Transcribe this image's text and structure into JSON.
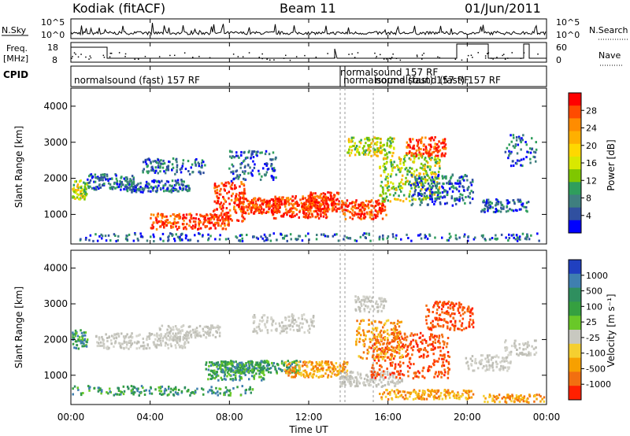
{
  "header": {
    "station": "Kodiak (fitACF)",
    "beam": "Beam 11",
    "date": "01/Jun/2011"
  },
  "panels": {
    "nsky": {
      "label": "N.Sky",
      "right_label": "N.Search",
      "ticks": [
        "10^5",
        "10^0"
      ],
      "right_ticks": [
        "10^5",
        "10^0"
      ]
    },
    "freq": {
      "label_line1": "Freq.",
      "label_line2": "[MHz]",
      "right_label": "Nave",
      "ticks": [
        "18",
        "8"
      ],
      "right_ticks": [
        "60",
        "0"
      ]
    },
    "cpid": {
      "label": "CPID",
      "entries": [
        "normalsound (fast) 157 RF",
        "normalsound 157 RF",
        "normalsound (fast) 157 RF",
        "normalsound (fast) 157 RF"
      ]
    }
  },
  "chart_data": [
    {
      "type": "heatmap",
      "name": "power",
      "ylabel": "Slant Range [km]",
      "ylim": [
        180,
        4500
      ],
      "yticks": [
        "1000",
        "2000",
        "3000",
        "4000"
      ],
      "colorbar": {
        "label": "Power [dB]",
        "ticks": [
          "28",
          "24",
          "20",
          "16",
          "12",
          "8",
          "4"
        ],
        "colors": [
          "#ff0000",
          "#ff4b00",
          "#ff8c00",
          "#ffb000",
          "#ffd800",
          "#d9e800",
          "#7fc700",
          "#2f9e5c",
          "#3f7f7f",
          "#3050a0",
          "#0000ff"
        ]
      }
    },
    {
      "type": "heatmap",
      "name": "velocity",
      "ylabel": "Slant Range [km]",
      "ylim": [
        180,
        4500
      ],
      "yticks": [
        "1000",
        "2000",
        "3000",
        "4000"
      ],
      "xlabel": "Time UT",
      "xticks": [
        "00:00",
        "04:00",
        "08:00",
        "12:00",
        "16:00",
        "20:00",
        "00:00"
      ],
      "colorbar": {
        "label": "Velocity [m s⁻¹]",
        "ticks": [
          "1000",
          "500",
          "100",
          "25",
          "-25",
          "-100",
          "-500",
          "-1000"
        ],
        "colors": [
          "#2040c0",
          "#3f7fb0",
          "#2f8f5f",
          "#35a040",
          "#69c828",
          "#c8c8c0",
          "#f5cf30",
          "#f7a000",
          "#f26f10",
          "#ff2000"
        ]
      }
    }
  ]
}
